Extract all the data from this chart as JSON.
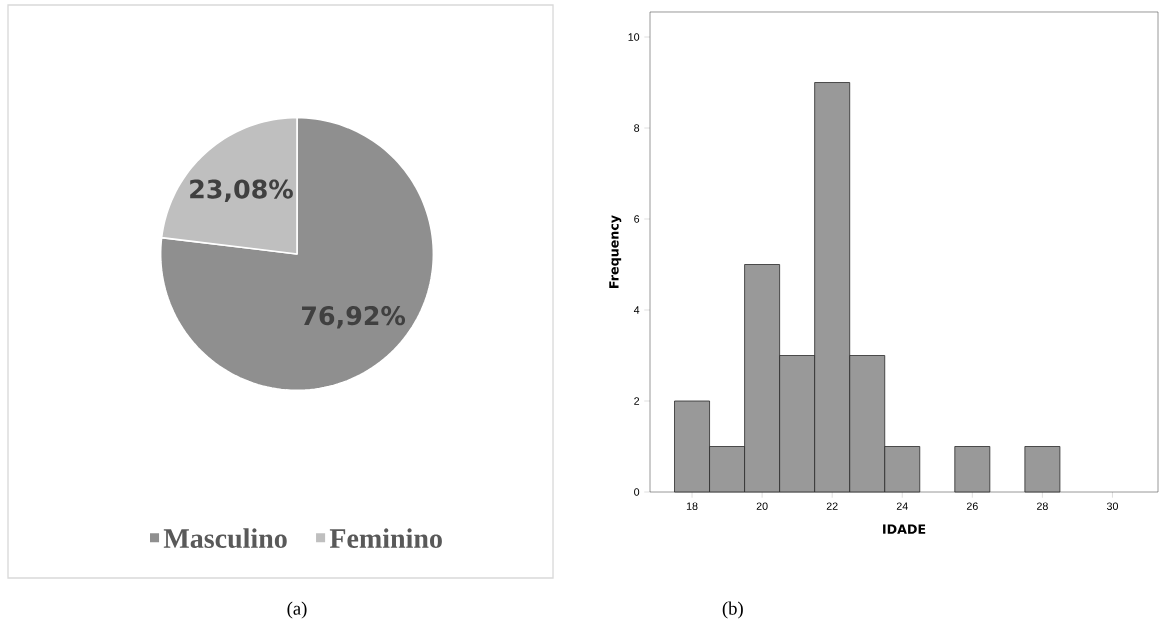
{
  "chart_data": [
    {
      "type": "pie",
      "categories": [
        "Masculino",
        "Feminino"
      ],
      "values": [
        76.92,
        23.08
      ],
      "colors": [
        "#8f8f8f",
        "#bfbfbf"
      ],
      "value_labels": [
        "76,92%",
        "23,08%"
      ],
      "legend": "bottom",
      "annotations": [
        "(a)"
      ]
    },
    {
      "type": "histogram",
      "bins": [
        17.5,
        18.5,
        19.5,
        20.5,
        21.5,
        22.5,
        23.5,
        24.5,
        25.5,
        26.5,
        27.5,
        28.5
      ],
      "values": [
        2,
        1,
        5,
        3,
        9,
        3,
        1,
        0,
        1,
        0,
        1
      ],
      "color": "#999999",
      "xlabel": "IDADE",
      "ylabel": "Frequency",
      "xlim": [
        16.8,
        31.3
      ],
      "ylim": [
        0,
        10.55
      ],
      "xticks": [
        18,
        20,
        22,
        24,
        26,
        28,
        30
      ],
      "yticks": [
        0,
        2,
        4,
        6,
        8,
        10
      ],
      "grid": false,
      "legend": false,
      "annotations": [
        "(b)"
      ]
    }
  ]
}
